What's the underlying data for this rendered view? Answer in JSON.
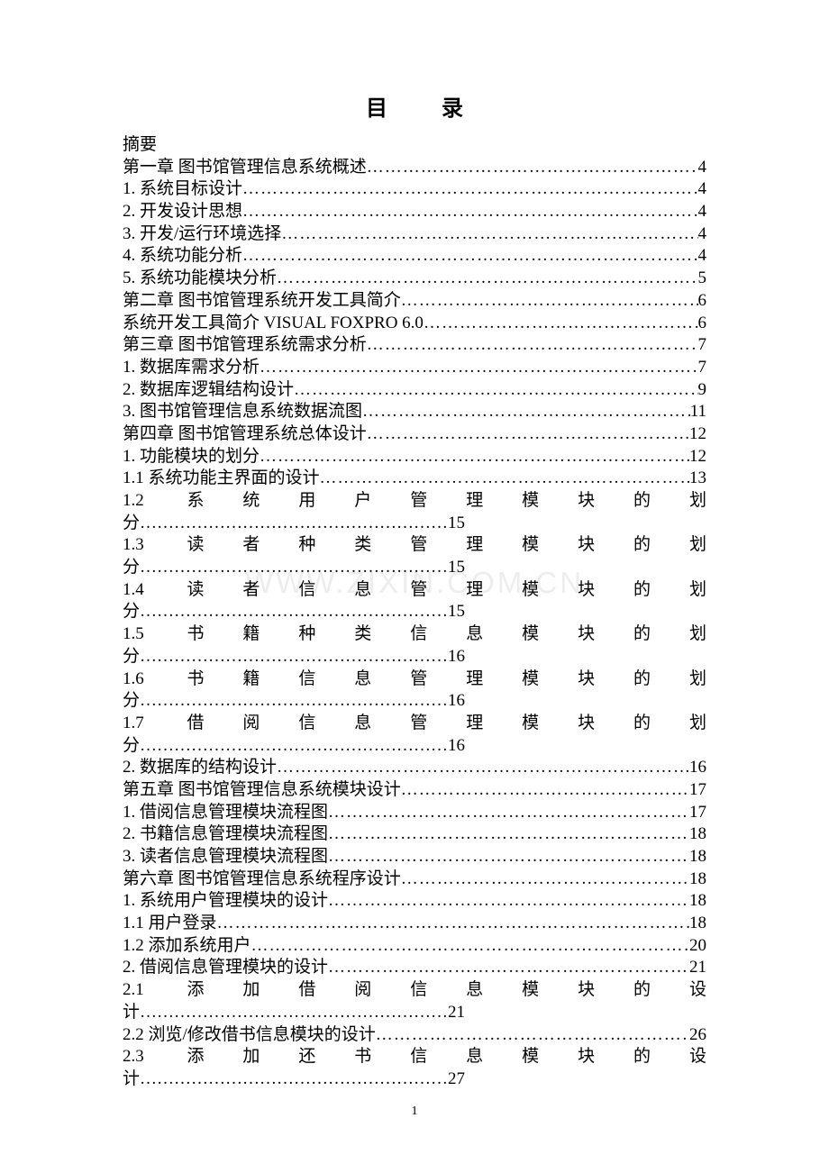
{
  "title": "目录",
  "abstract": "摘要",
  "watermark": "WWW.ZIXIN.COM.CN",
  "pageNumber": "1",
  "colors": {
    "background": "#ffffff",
    "text": "#000000",
    "watermark": "#e0e0e0"
  },
  "fonts": {
    "body_size": 19,
    "title_size": 24,
    "family": "SimSun"
  },
  "entries": [
    {
      "text": "第一章  图书馆管理信息系统概述",
      "page": "4",
      "type": "normal"
    },
    {
      "text": "1. 系统目标设计",
      "page": "4",
      "type": "normal"
    },
    {
      "text": "2. 开发设计思想",
      "page": "4",
      "type": "normal"
    },
    {
      "text": "3. 开发/运行环境选择",
      "page": "4",
      "type": "normal"
    },
    {
      "text": "4. 系统功能分析",
      "page": "4",
      "type": "normal"
    },
    {
      "text": "5. 系统功能模块分析",
      "page": "5",
      "type": "normal"
    },
    {
      "text": "第二章  图书馆管理系统开发工具简介",
      "page": "6",
      "type": "normal"
    },
    {
      "text": "系统开发工具简介 VISUAL FOXPRO 6.0",
      "page": "6",
      "type": "normal"
    },
    {
      "text": "第三章  图书馆管理系统需求分析",
      "page": "7",
      "type": "normal"
    },
    {
      "text": "1. 数据库需求分析",
      "page": "7",
      "type": "normal"
    },
    {
      "text": "2. 数据库逻辑结构设计",
      "page": "9",
      "type": "normal"
    },
    {
      "text": "3. 图书馆管理信息系统数据流图",
      "page": "11",
      "type": "normal"
    },
    {
      "text": "第四章  图书馆管理系统总体设计",
      "page": "12",
      "type": "normal"
    },
    {
      "text": "1. 功能模块的划分",
      "page": "12",
      "type": "normal"
    },
    {
      "text": "1.1 系统功能主界面的设计",
      "page": "13",
      "type": "normal"
    },
    {
      "text": "1.2 系统用户管理模块的划分",
      "page": "15",
      "type": "justified"
    },
    {
      "text": "1.3 读者种类管理模块的划分",
      "page": "15",
      "type": "justified"
    },
    {
      "text": "1.4 读者信息管理模块的划分",
      "page": "15",
      "type": "justified"
    },
    {
      "text": "1.5 书籍种类信息模块的划分",
      "page": "16",
      "type": "justified"
    },
    {
      "text": "1.6 书籍信息管理模块的划分",
      "page": "16",
      "type": "justified"
    },
    {
      "text": "1.7 借阅信息管理模块的划分",
      "page": "16",
      "type": "justified"
    },
    {
      "text": "2. 数据库的结构设计",
      "page": "16",
      "type": "normal"
    },
    {
      "text": "第五章  图书馆管理信息系统模块设计",
      "page": "17",
      "type": "normal"
    },
    {
      "text": "1. 借阅信息管理模块流程图",
      "page": "17",
      "type": "normal"
    },
    {
      "text": "2. 书籍信息管理模块流程图",
      "page": "18",
      "type": "normal"
    },
    {
      "text": "3. 读者信息管理模块流程图",
      "page": "18",
      "type": "normal"
    },
    {
      "text": "第六章  图书馆管理信息系统程序设计",
      "page": "18",
      "type": "normal"
    },
    {
      "text": "1. 系统用户管理模块的设计",
      "page": "18",
      "type": "normal"
    },
    {
      "text": "1.1 用户登录",
      "page": "18",
      "type": "normal"
    },
    {
      "text": "1.2 添加系统用户",
      "page": "20",
      "type": "normal"
    },
    {
      "text": "2. 借阅信息管理模块的设计",
      "page": "21",
      "type": "normal"
    },
    {
      "text": "2.1 添加借阅信息模块的设计",
      "page": "21",
      "type": "justified"
    },
    {
      "text": "2.2 浏览/修改借书信息模块的设计",
      "page": "26",
      "type": "normal"
    },
    {
      "text": "2.3 添加还书信息模块的设计",
      "page": "27",
      "type": "justified"
    }
  ]
}
